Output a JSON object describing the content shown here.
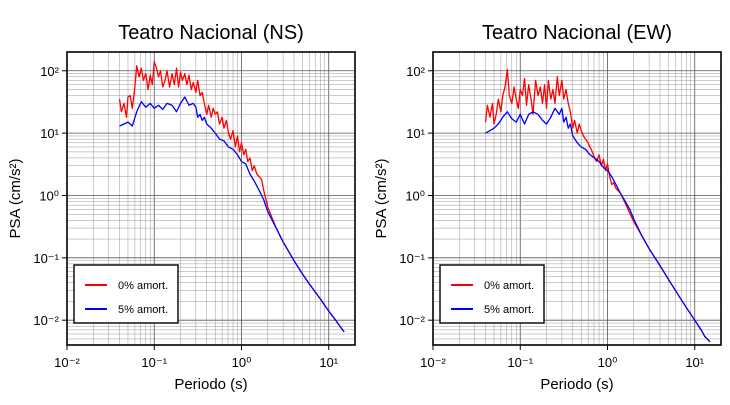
{
  "figure": {
    "background": "#ffffff"
  },
  "chart_data": [
    {
      "type": "line",
      "title": "Teatro Nacional (NS)",
      "xlabel": "Periodo (s)",
      "ylabel": "PSA (cm/s²)",
      "xscale": "log",
      "yscale": "log",
      "xlim": [
        0.01,
        20
      ],
      "ylim": [
        0.004,
        200
      ],
      "x_tick_labels": [
        "10⁻²",
        "10⁻¹",
        "10⁰",
        "10¹"
      ],
      "y_tick_labels": [
        "10⁻²",
        "10⁻¹",
        "10⁰",
        "10¹",
        "10²"
      ],
      "grid": true,
      "legend_position": "lower-left",
      "series": [
        {
          "name": "0% amort.",
          "color": "#ff0000",
          "x": [
            0.04,
            0.042,
            0.045,
            0.048,
            0.05,
            0.053,
            0.056,
            0.06,
            0.063,
            0.067,
            0.071,
            0.075,
            0.08,
            0.085,
            0.09,
            0.095,
            0.1,
            0.106,
            0.112,
            0.118,
            0.125,
            0.133,
            0.14,
            0.15,
            0.16,
            0.17,
            0.18,
            0.19,
            0.2,
            0.21,
            0.224,
            0.237,
            0.25,
            0.266,
            0.28,
            0.3,
            0.315,
            0.335,
            0.355,
            0.375,
            0.4,
            0.42,
            0.45,
            0.475,
            0.5,
            0.53,
            0.56,
            0.6,
            0.63,
            0.67,
            0.71,
            0.75,
            0.8,
            0.85,
            0.9,
            0.95,
            1.0,
            1.06,
            1.12,
            1.18,
            1.25,
            1.33,
            1.4,
            1.5,
            1.6,
            1.7,
            1.8,
            2.0,
            2.5,
            3.0,
            4.0,
            5.0,
            6.0,
            8.0,
            10.0,
            12.0,
            13.0,
            15.0
          ],
          "y": [
            35,
            22,
            30,
            18,
            38,
            40,
            25,
            55,
            120,
            80,
            110,
            70,
            90,
            50,
            85,
            60,
            140,
            110,
            80,
            100,
            55,
            70,
            100,
            55,
            90,
            60,
            110,
            55,
            95,
            70,
            90,
            60,
            85,
            50,
            65,
            45,
            70,
            40,
            45,
            30,
            20,
            28,
            18,
            25,
            20,
            22,
            14,
            18,
            12,
            16,
            10,
            8,
            11,
            6,
            9,
            5,
            7,
            4.5,
            5.5,
            3.5,
            4,
            2.5,
            3,
            2.2,
            2,
            1.8,
            1.2,
            0.65,
            0.3,
            0.18,
            0.09,
            0.055,
            0.038,
            0.022,
            0.014,
            0.01,
            0.0085,
            0.0065
          ]
        },
        {
          "name": "5% amort.",
          "color": "#0000ff",
          "x": [
            0.04,
            0.045,
            0.05,
            0.056,
            0.063,
            0.071,
            0.08,
            0.09,
            0.1,
            0.112,
            0.125,
            0.14,
            0.16,
            0.18,
            0.2,
            0.224,
            0.25,
            0.28,
            0.3,
            0.315,
            0.335,
            0.355,
            0.375,
            0.4,
            0.45,
            0.5,
            0.56,
            0.63,
            0.71,
            0.8,
            0.9,
            1.0,
            1.12,
            1.25,
            1.4,
            1.6,
            1.8,
            2.0,
            2.5,
            3.0,
            4.0,
            5.0,
            6.0,
            8.0,
            10.0,
            12.0,
            13.0,
            15.0
          ],
          "y": [
            13,
            14,
            15,
            13,
            22,
            32,
            26,
            30,
            25,
            28,
            24,
            30,
            28,
            22,
            30,
            38,
            28,
            30,
            26,
            18,
            20,
            16,
            18,
            14,
            12,
            10,
            8,
            7.5,
            6,
            5.5,
            4.5,
            3.5,
            3.2,
            2.2,
            1.7,
            1.2,
            0.85,
            0.55,
            0.3,
            0.18,
            0.09,
            0.055,
            0.038,
            0.022,
            0.014,
            0.01,
            0.0085,
            0.0065
          ]
        }
      ]
    },
    {
      "type": "line",
      "title": "Teatro Nacional (EW)",
      "xlabel": "Periodo (s)",
      "ylabel": "PSA (cm/s²)",
      "xscale": "log",
      "yscale": "log",
      "xlim": [
        0.01,
        20
      ],
      "ylim": [
        0.004,
        200
      ],
      "x_tick_labels": [
        "10⁻²",
        "10⁻¹",
        "10⁰",
        "10¹"
      ],
      "y_tick_labels": [
        "10⁻²",
        "10⁻¹",
        "10⁰",
        "10¹",
        "10²"
      ],
      "grid": true,
      "legend_position": "lower-left",
      "series": [
        {
          "name": "0% amort.",
          "color": "#ff0000",
          "x": [
            0.04,
            0.042,
            0.045,
            0.048,
            0.05,
            0.053,
            0.056,
            0.06,
            0.063,
            0.067,
            0.071,
            0.075,
            0.08,
            0.085,
            0.09,
            0.095,
            0.1,
            0.106,
            0.112,
            0.118,
            0.125,
            0.133,
            0.14,
            0.15,
            0.16,
            0.17,
            0.18,
            0.19,
            0.2,
            0.21,
            0.224,
            0.237,
            0.25,
            0.266,
            0.28,
            0.3,
            0.315,
            0.335,
            0.355,
            0.375,
            0.4,
            0.42,
            0.45,
            0.475,
            0.5,
            0.53,
            0.56,
            0.6,
            0.63,
            0.67,
            0.71,
            0.75,
            0.8,
            0.85,
            0.9,
            0.95,
            1.0,
            1.06,
            1.12,
            1.18,
            1.25,
            1.4,
            1.6,
            1.8,
            2.0,
            2.5,
            3.0,
            4.0,
            5.0,
            6.0,
            8.0,
            10.0,
            12.0,
            13.0,
            15.0
          ],
          "y": [
            15,
            28,
            18,
            30,
            14,
            20,
            35,
            22,
            40,
            55,
            105,
            40,
            30,
            55,
            35,
            25,
            50,
            40,
            75,
            28,
            60,
            35,
            20,
            70,
            40,
            55,
            30,
            60,
            25,
            70,
            35,
            50,
            30,
            80,
            40,
            70,
            35,
            50,
            30,
            22,
            12,
            16,
            10,
            14,
            11,
            9,
            8,
            7,
            6,
            5,
            4,
            3.5,
            4.5,
            3,
            3.8,
            2.5,
            3.2,
            2,
            1.5,
            1.6,
            1.3,
            1.1,
            0.75,
            0.52,
            0.38,
            0.22,
            0.14,
            0.075,
            0.045,
            0.03,
            0.016,
            0.01,
            0.0068,
            0.0055,
            0.0045
          ]
        },
        {
          "name": "5% amort.",
          "color": "#0000ff",
          "x": [
            0.04,
            0.045,
            0.05,
            0.056,
            0.063,
            0.071,
            0.08,
            0.09,
            0.1,
            0.112,
            0.125,
            0.14,
            0.16,
            0.18,
            0.2,
            0.224,
            0.25,
            0.28,
            0.3,
            0.315,
            0.335,
            0.355,
            0.375,
            0.4,
            0.45,
            0.5,
            0.56,
            0.63,
            0.71,
            0.8,
            0.9,
            1.0,
            1.12,
            1.25,
            1.4,
            1.6,
            1.8,
            2.0,
            2.5,
            3.0,
            4.0,
            5.0,
            6.0,
            8.0,
            10.0,
            12.0,
            13.0,
            15.0
          ],
          "y": [
            10,
            11,
            12,
            14,
            18,
            22,
            17,
            15,
            20,
            14,
            20,
            22,
            20,
            16,
            14,
            18,
            25,
            20,
            25,
            15,
            18,
            12,
            14,
            9,
            7,
            6,
            5.5,
            4.5,
            4,
            3.5,
            2.8,
            2.5,
            2,
            1.5,
            1.1,
            0.8,
            0.6,
            0.42,
            0.22,
            0.14,
            0.075,
            0.045,
            0.03,
            0.016,
            0.01,
            0.0068,
            0.0055,
            0.0045
          ]
        }
      ]
    }
  ]
}
